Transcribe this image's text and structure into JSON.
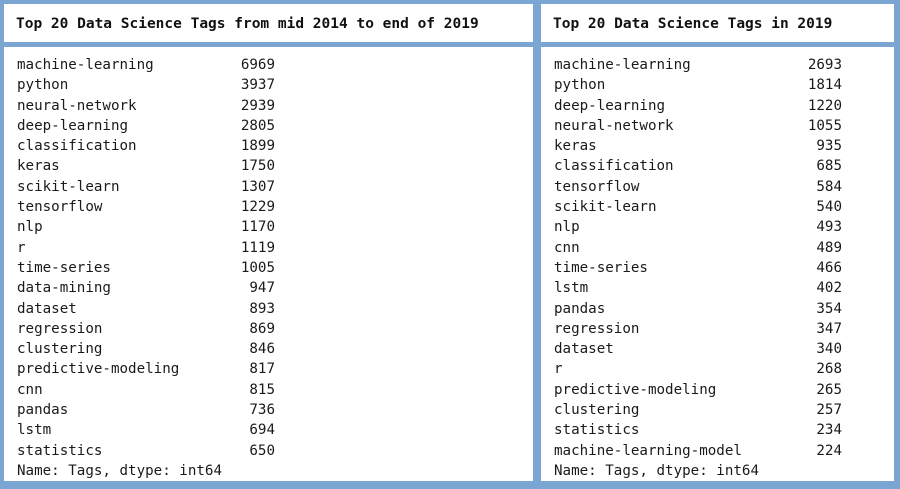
{
  "left": {
    "title": "Top 20 Data Science Tags from mid 2014 to end of 2019",
    "rows": [
      {
        "tag": "machine-learning",
        "count": "6969"
      },
      {
        "tag": "python",
        "count": "3937"
      },
      {
        "tag": "neural-network",
        "count": "2939"
      },
      {
        "tag": "deep-learning",
        "count": "2805"
      },
      {
        "tag": "classification",
        "count": "1899"
      },
      {
        "tag": "keras",
        "count": "1750"
      },
      {
        "tag": "scikit-learn",
        "count": "1307"
      },
      {
        "tag": "tensorflow",
        "count": "1229"
      },
      {
        "tag": "nlp",
        "count": "1170"
      },
      {
        "tag": "r",
        "count": "1119"
      },
      {
        "tag": "time-series",
        "count": "1005"
      },
      {
        "tag": "data-mining",
        "count": "947"
      },
      {
        "tag": "dataset",
        "count": "893"
      },
      {
        "tag": "regression",
        "count": "869"
      },
      {
        "tag": "clustering",
        "count": "846"
      },
      {
        "tag": "predictive-modeling",
        "count": "817"
      },
      {
        "tag": "cnn",
        "count": "815"
      },
      {
        "tag": "pandas",
        "count": "736"
      },
      {
        "tag": "lstm",
        "count": "694"
      },
      {
        "tag": "statistics",
        "count": "650"
      }
    ],
    "footer": "Name: Tags, dtype: int64"
  },
  "right": {
    "title": "Top 20 Data Science Tags in 2019",
    "rows": [
      {
        "tag": "machine-learning",
        "count": "2693"
      },
      {
        "tag": "python",
        "count": "1814"
      },
      {
        "tag": "deep-learning",
        "count": "1220"
      },
      {
        "tag": "neural-network",
        "count": "1055"
      },
      {
        "tag": "keras",
        "count": "935"
      },
      {
        "tag": "classification",
        "count": "685"
      },
      {
        "tag": "tensorflow",
        "count": "584"
      },
      {
        "tag": "scikit-learn",
        "count": "540"
      },
      {
        "tag": "nlp",
        "count": "493"
      },
      {
        "tag": "cnn",
        "count": "489"
      },
      {
        "tag": "time-series",
        "count": "466"
      },
      {
        "tag": "lstm",
        "count": "402"
      },
      {
        "tag": "pandas",
        "count": "354"
      },
      {
        "tag": "regression",
        "count": "347"
      },
      {
        "tag": "dataset",
        "count": "340"
      },
      {
        "tag": "r",
        "count": "268"
      },
      {
        "tag": "predictive-modeling",
        "count": "265"
      },
      {
        "tag": "clustering",
        "count": "257"
      },
      {
        "tag": "statistics",
        "count": "234"
      },
      {
        "tag": "machine-learning-model",
        "count": "224"
      }
    ],
    "footer": "Name: Tags, dtype: int64"
  }
}
